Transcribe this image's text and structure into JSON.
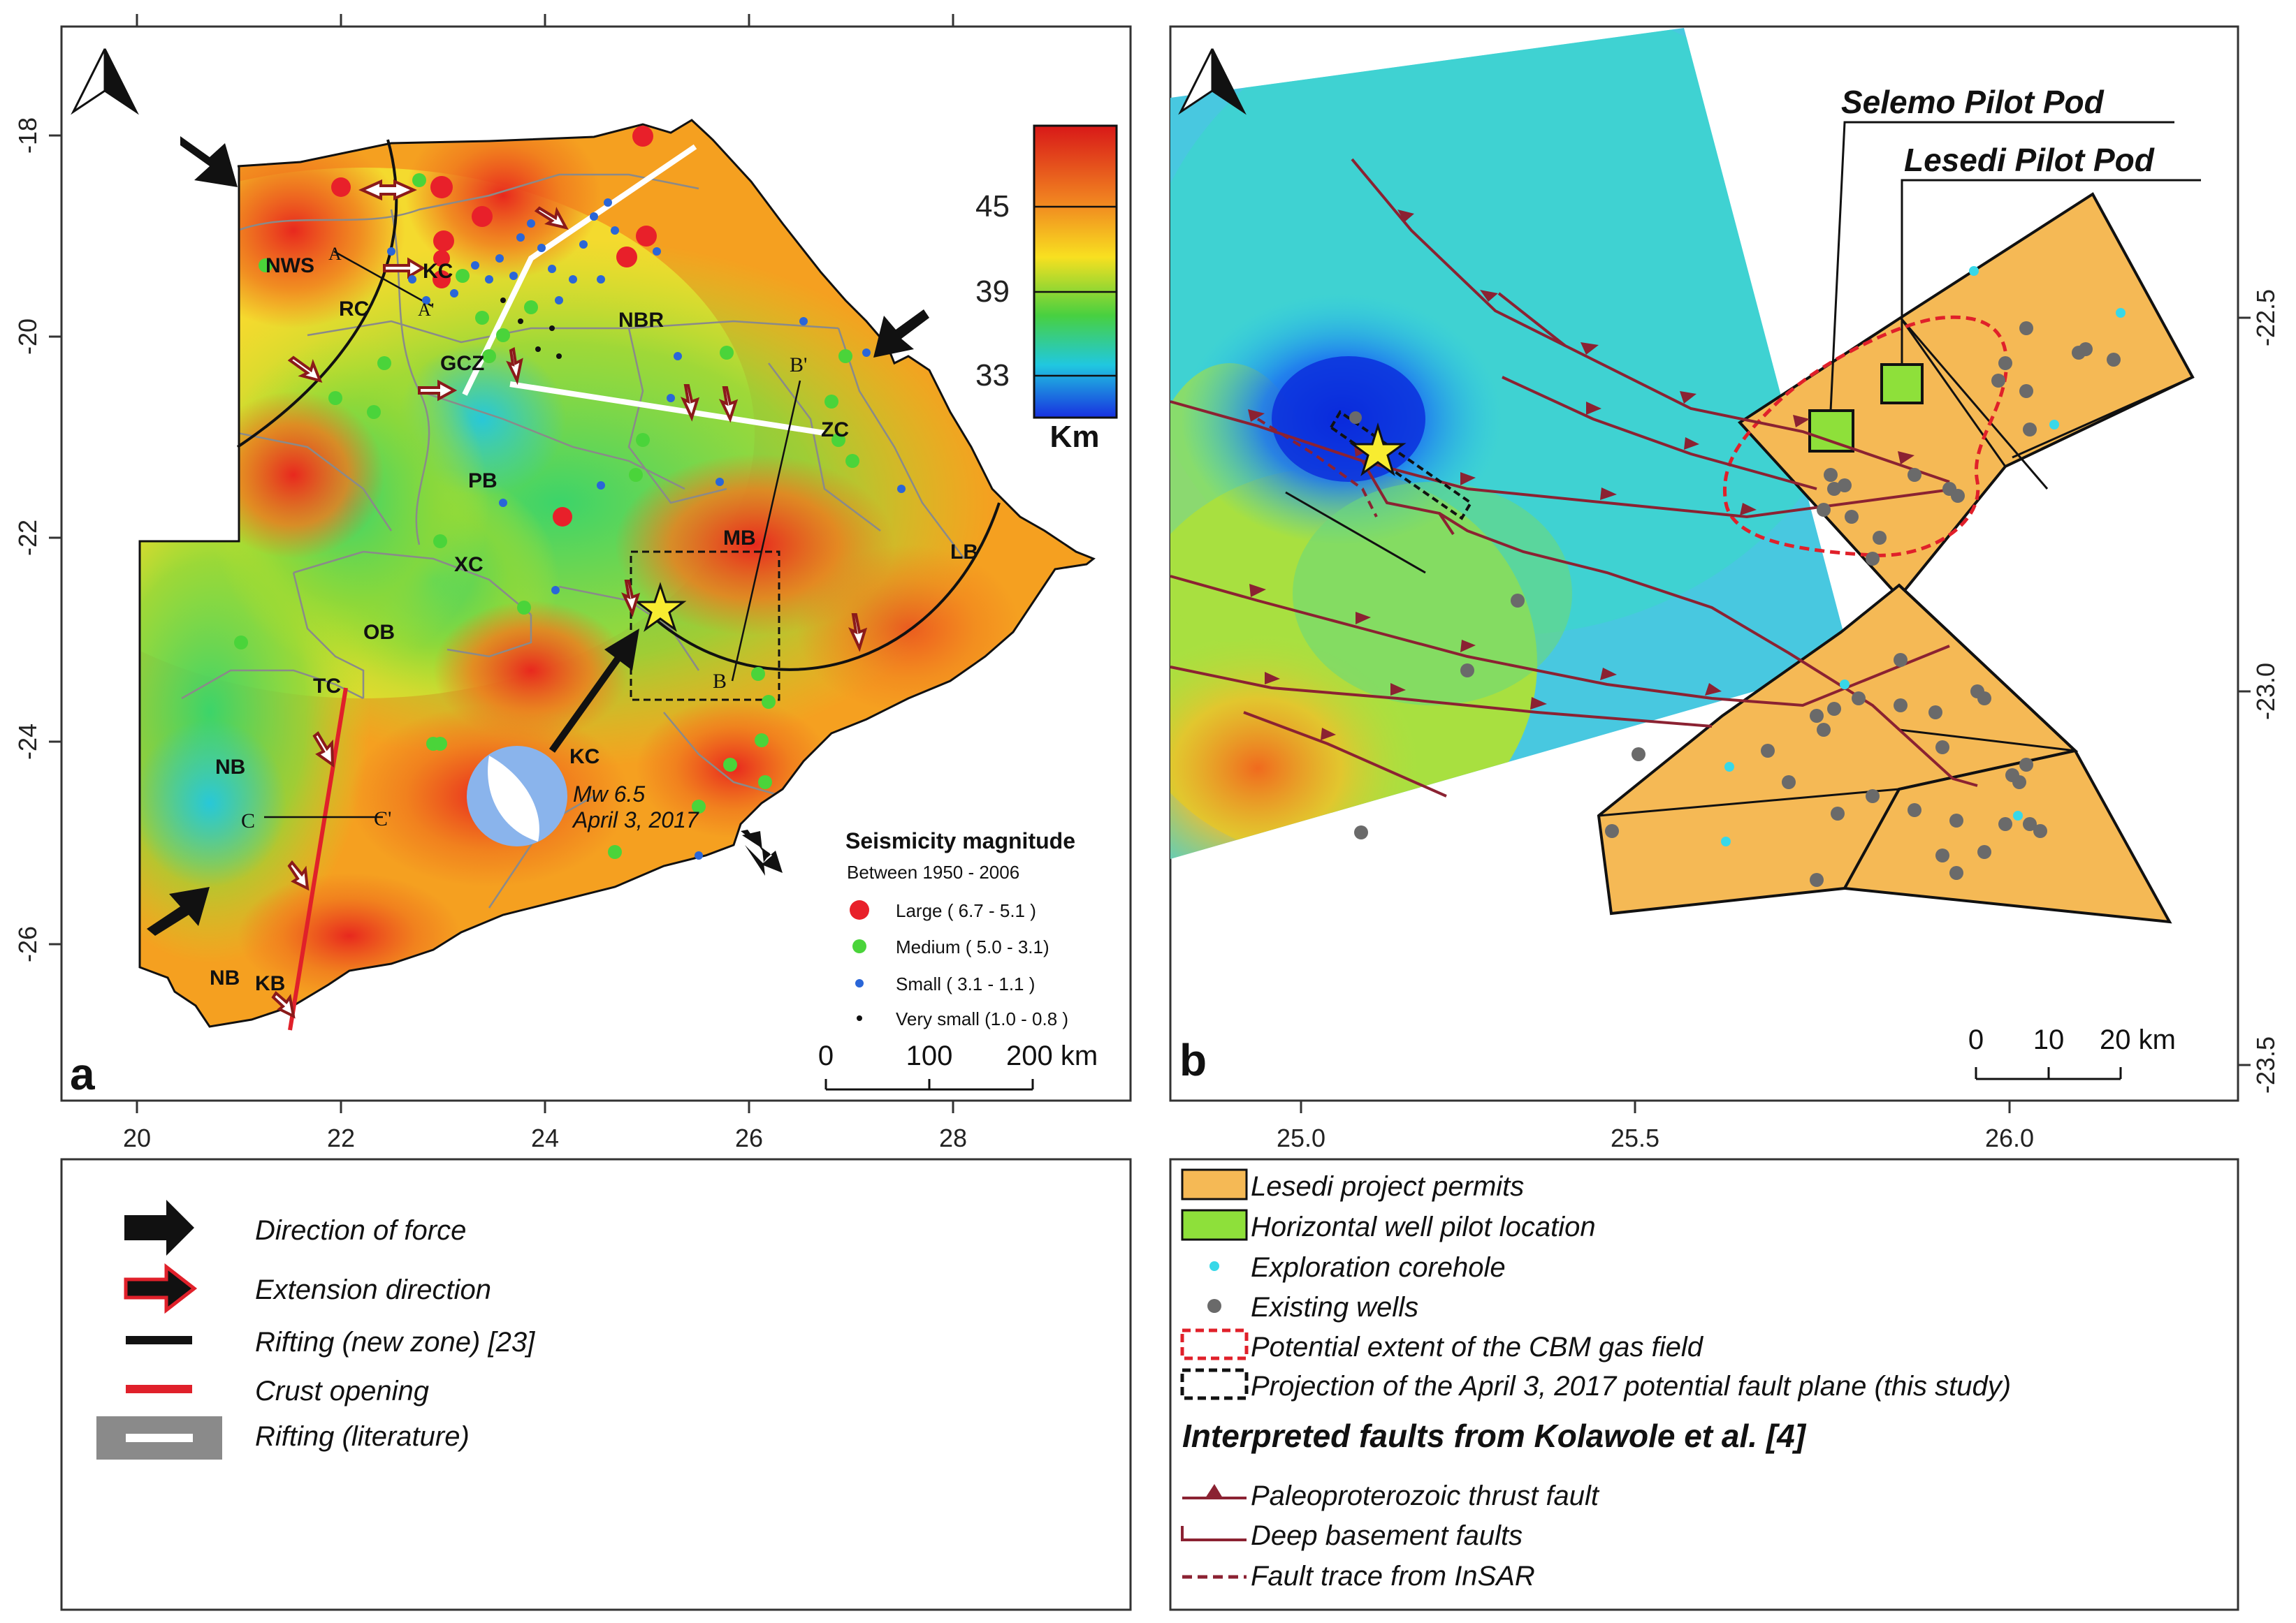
{
  "panel_a": {
    "label": "a",
    "x_ticks": [
      "20",
      "22",
      "24",
      "26",
      "28"
    ],
    "y_ticks": [
      "-18",
      "-20",
      "-22",
      "-24",
      "-26"
    ],
    "regions": [
      "NWS",
      "RC",
      "KC",
      "GCZ",
      "NBR",
      "ZC",
      "PB",
      "XC",
      "MB",
      "LB",
      "OB",
      "TC",
      "NB",
      "KC",
      "NB",
      "KB"
    ],
    "profiles": [
      "A",
      "A'",
      "B",
      "B'",
      "C",
      "C'"
    ],
    "colorbar": {
      "ticks": [
        "45",
        "39",
        "33"
      ],
      "unit": "Km"
    },
    "event": {
      "line1": "Mw 6.5",
      "line2": "April 3, 2017"
    },
    "seismicity": {
      "title": "Seismicity magnitude",
      "subtitle": "Between  1950 - 2006",
      "items": [
        {
          "label": "Large ( 6.7 - 5.1 )",
          "color": "#e8202a"
        },
        {
          "label": "Medium ( 5.0 - 3.1)",
          "color": "#4ad43a"
        },
        {
          "label": "Small ( 3.1 - 1.1 )",
          "color": "#2a66d8"
        },
        {
          "label": "Very small (1.0 - 0.8 )",
          "color": "#111111"
        }
      ]
    },
    "scalebar": {
      "ticks": [
        "0",
        "100",
        "200 km"
      ]
    }
  },
  "panel_b": {
    "label": "b",
    "x_ticks": [
      "25.0",
      "25.5",
      "26.0"
    ],
    "y_ticks": [
      "-22.5",
      "-23.0",
      "-23.5"
    ],
    "pods": [
      "Selemo Pilot Pod",
      "Lesedi Pilot Pod"
    ],
    "scalebar": {
      "ticks": [
        "0",
        "10",
        "20 km"
      ]
    }
  },
  "legend_left": [
    {
      "icon": "black-arrow",
      "label": "Direction of force"
    },
    {
      "icon": "red-outline-arrow",
      "label": "Extension direction"
    },
    {
      "icon": "black-line",
      "label": "Rifting (new zone) [23]"
    },
    {
      "icon": "red-line",
      "label": "Crust opening"
    },
    {
      "icon": "grey-white-band",
      "label": "Rifting (literature)"
    }
  ],
  "legend_right": {
    "items": [
      {
        "icon": "orange-box",
        "label": "Lesedi project permits"
      },
      {
        "icon": "green-box",
        "label": "Horizontal well pilot location"
      },
      {
        "icon": "cyan-dot",
        "label": "Exploration corehole"
      },
      {
        "icon": "grey-dot",
        "label": "Existing wells"
      },
      {
        "icon": "red-dashed-box",
        "label": "Potential extent of the CBM gas field"
      },
      {
        "icon": "black-dashed-box",
        "label": "Projection of the April 3, 2017 potential fault plane (this study)"
      }
    ],
    "faults_title": "Interpreted faults from Kolawole et al. [4]",
    "faults": [
      {
        "icon": "thrust-fault",
        "label": "Paleoproterozoic thrust fault"
      },
      {
        "icon": "basement-fault",
        "label": "Deep basement faults"
      },
      {
        "icon": "insar-trace",
        "label": "Fault trace from InSAR"
      }
    ]
  },
  "colors": {
    "fault": "#8b2232",
    "permit": "#f5b955",
    "pilot": "#8ee03a",
    "cbm": "#e0202a"
  }
}
